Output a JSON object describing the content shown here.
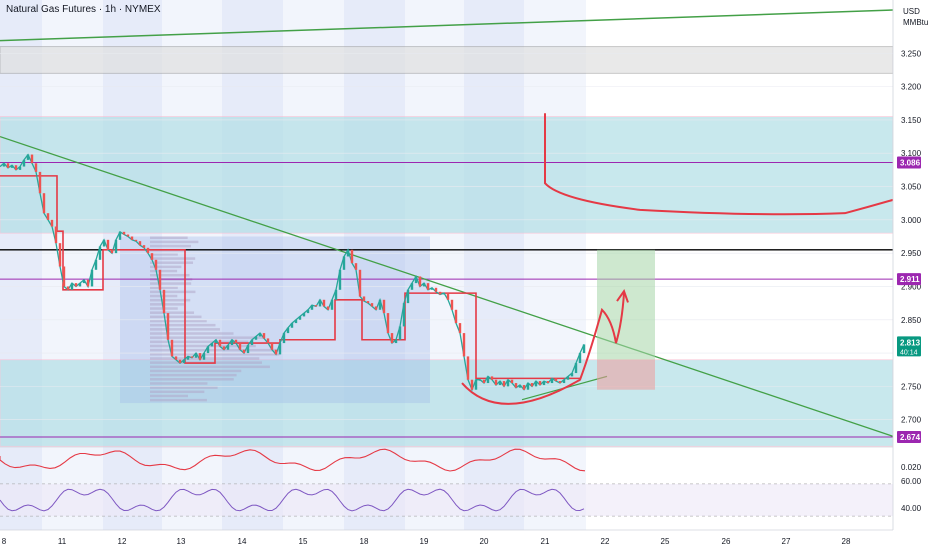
{
  "header": {
    "title": "Natural Gas Futures · 1h · NYMEX",
    "currency": "USD",
    "unit": "MMBtu"
  },
  "chart_data": {
    "type": "line",
    "title": "Natural Gas Futures · 1h · NYMEX",
    "xlabel": "",
    "ylabel": "",
    "x_ticks": [
      "8",
      "11",
      "12",
      "13",
      "14",
      "15",
      "18",
      "19",
      "20",
      "21",
      "22",
      "25",
      "26",
      "27",
      "28"
    ],
    "y_ticks": [
      "3.250",
      "3.200",
      "3.150",
      "3.100",
      "3.050",
      "3.000",
      "2.950",
      "2.900",
      "2.850",
      "2.800",
      "2.750",
      "2.700"
    ],
    "ylim": [
      2.662,
      3.3
    ],
    "price_series": {
      "name": "",
      "points": [
        [
          0,
          3.08
        ],
        [
          4,
          3.085
        ],
        [
          8,
          3.078
        ],
        [
          12,
          3.082
        ],
        [
          16,
          3.075
        ],
        [
          20,
          3.08
        ],
        [
          24,
          3.09
        ],
        [
          28,
          3.098
        ],
        [
          32,
          3.085
        ],
        [
          36,
          3.072
        ],
        [
          40,
          3.04
        ],
        [
          44,
          3.01
        ],
        [
          48,
          3.0
        ],
        [
          52,
          2.99
        ],
        [
          56,
          2.965
        ],
        [
          60,
          2.93
        ],
        [
          64,
          2.9
        ],
        [
          68,
          2.895
        ],
        [
          72,
          2.905
        ],
        [
          76,
          2.9
        ],
        [
          80,
          2.905
        ],
        [
          84,
          2.91
        ],
        [
          88,
          2.9
        ],
        [
          92,
          2.925
        ],
        [
          96,
          2.94
        ],
        [
          100,
          2.96
        ],
        [
          104,
          2.97
        ],
        [
          108,
          2.955
        ],
        [
          112,
          2.95
        ],
        [
          116,
          2.97
        ],
        [
          120,
          2.982
        ],
        [
          124,
          2.978
        ],
        [
          128,
          2.975
        ],
        [
          132,
          2.97
        ],
        [
          136,
          2.968
        ],
        [
          140,
          2.962
        ],
        [
          144,
          2.958
        ],
        [
          148,
          2.95
        ],
        [
          152,
          2.94
        ],
        [
          156,
          2.925
        ],
        [
          160,
          2.895
        ],
        [
          164,
          2.86
        ],
        [
          168,
          2.82
        ],
        [
          172,
          2.795
        ],
        [
          176,
          2.79
        ],
        [
          180,
          2.785
        ],
        [
          184,
          2.79
        ],
        [
          188,
          2.795
        ],
        [
          192,
          2.793
        ],
        [
          196,
          2.8
        ],
        [
          200,
          2.79
        ],
        [
          204,
          2.8
        ],
        [
          208,
          2.81
        ],
        [
          212,
          2.815
        ],
        [
          216,
          2.82
        ],
        [
          220,
          2.81
        ],
        [
          224,
          2.805
        ],
        [
          228,
          2.812
        ],
        [
          232,
          2.82
        ],
        [
          236,
          2.815
        ],
        [
          240,
          2.805
        ],
        [
          244,
          2.8
        ],
        [
          248,
          2.812
        ],
        [
          252,
          2.82
        ],
        [
          256,
          2.825
        ],
        [
          260,
          2.83
        ],
        [
          264,
          2.822
        ],
        [
          268,
          2.815
        ],
        [
          272,
          2.805
        ],
        [
          276,
          2.798
        ],
        [
          280,
          2.815
        ],
        [
          284,
          2.83
        ],
        [
          288,
          2.838
        ],
        [
          292,
          2.845
        ],
        [
          296,
          2.85
        ],
        [
          300,
          2.855
        ],
        [
          304,
          2.86
        ],
        [
          308,
          2.865
        ],
        [
          312,
          2.872
        ],
        [
          316,
          2.87
        ],
        [
          320,
          2.88
        ],
        [
          324,
          2.87
        ],
        [
          328,
          2.865
        ],
        [
          332,
          2.88
        ],
        [
          336,
          2.895
        ],
        [
          340,
          2.925
        ],
        [
          344,
          2.945
        ],
        [
          348,
          2.955
        ],
        [
          352,
          2.935
        ],
        [
          356,
          2.925
        ],
        [
          360,
          2.885
        ],
        [
          364,
          2.878
        ],
        [
          368,
          2.875
        ],
        [
          372,
          2.87
        ],
        [
          376,
          2.865
        ],
        [
          380,
          2.88
        ],
        [
          384,
          2.86
        ],
        [
          388,
          2.83
        ],
        [
          392,
          2.815
        ],
        [
          396,
          2.82
        ],
        [
          400,
          2.84
        ],
        [
          404,
          2.875
        ],
        [
          408,
          2.895
        ],
        [
          412,
          2.905
        ],
        [
          416,
          2.915
        ],
        [
          420,
          2.9
        ],
        [
          424,
          2.905
        ],
        [
          428,
          2.895
        ],
        [
          432,
          2.898
        ],
        [
          436,
          2.892
        ],
        [
          440,
          2.888
        ],
        [
          444,
          2.89
        ],
        [
          448,
          2.88
        ],
        [
          452,
          2.865
        ],
        [
          456,
          2.845
        ],
        [
          460,
          2.83
        ],
        [
          464,
          2.795
        ],
        [
          468,
          2.76
        ],
        [
          472,
          2.745
        ],
        [
          476,
          2.76
        ],
        [
          480,
          2.76
        ],
        [
          484,
          2.755
        ],
        [
          488,
          2.765
        ],
        [
          492,
          2.76
        ],
        [
          496,
          2.752
        ],
        [
          500,
          2.758
        ],
        [
          504,
          2.75
        ],
        [
          508,
          2.76
        ],
        [
          512,
          2.755
        ],
        [
          516,
          2.748
        ],
        [
          520,
          2.752
        ],
        [
          524,
          2.745
        ],
        [
          528,
          2.755
        ],
        [
          532,
          2.75
        ],
        [
          536,
          2.758
        ],
        [
          540,
          2.752
        ],
        [
          544,
          2.758
        ],
        [
          548,
          2.755
        ],
        [
          552,
          2.762
        ],
        [
          556,
          2.758
        ],
        [
          560,
          2.755
        ],
        [
          564,
          2.76
        ],
        [
          568,
          2.765
        ],
        [
          572,
          2.77
        ],
        [
          576,
          2.785
        ],
        [
          580,
          2.8
        ],
        [
          584,
          2.813
        ]
      ]
    },
    "resistance_line": [
      [
        0,
        3.125
      ],
      [
        893,
        2.675
      ]
    ],
    "upper_trend_line": [
      [
        0,
        3.269
      ],
      [
        893,
        3.315
      ]
    ],
    "horizontal_levels": [
      {
        "price": 3.086,
        "label": "3.086",
        "color": "#9c27b0"
      },
      {
        "price": 2.911,
        "label": "2.911",
        "color": "#9c27b0"
      },
      {
        "price": 2.674,
        "label": "2.674",
        "color": "#9c27b0"
      },
      {
        "price": 2.955,
        "label": "",
        "color": "#000000"
      }
    ],
    "current_price": {
      "value": 2.813,
      "label": "2.813",
      "countdown": "40:14",
      "color": "#089981"
    },
    "zones": [
      {
        "from": 3.22,
        "to": 3.26,
        "color": "#e0e0e0"
      },
      {
        "from": 2.98,
        "to": 3.155,
        "color": "#b2dfe6"
      },
      {
        "from": 2.66,
        "to": 2.79,
        "color": "#b2dfe6"
      }
    ],
    "position_tool": {
      "entry": 2.79,
      "target": 2.955,
      "stop": 2.745
    },
    "oscillator_ticks": [
      "0.020"
    ],
    "rsi_ticks": [
      "60.00",
      "40.00"
    ]
  }
}
